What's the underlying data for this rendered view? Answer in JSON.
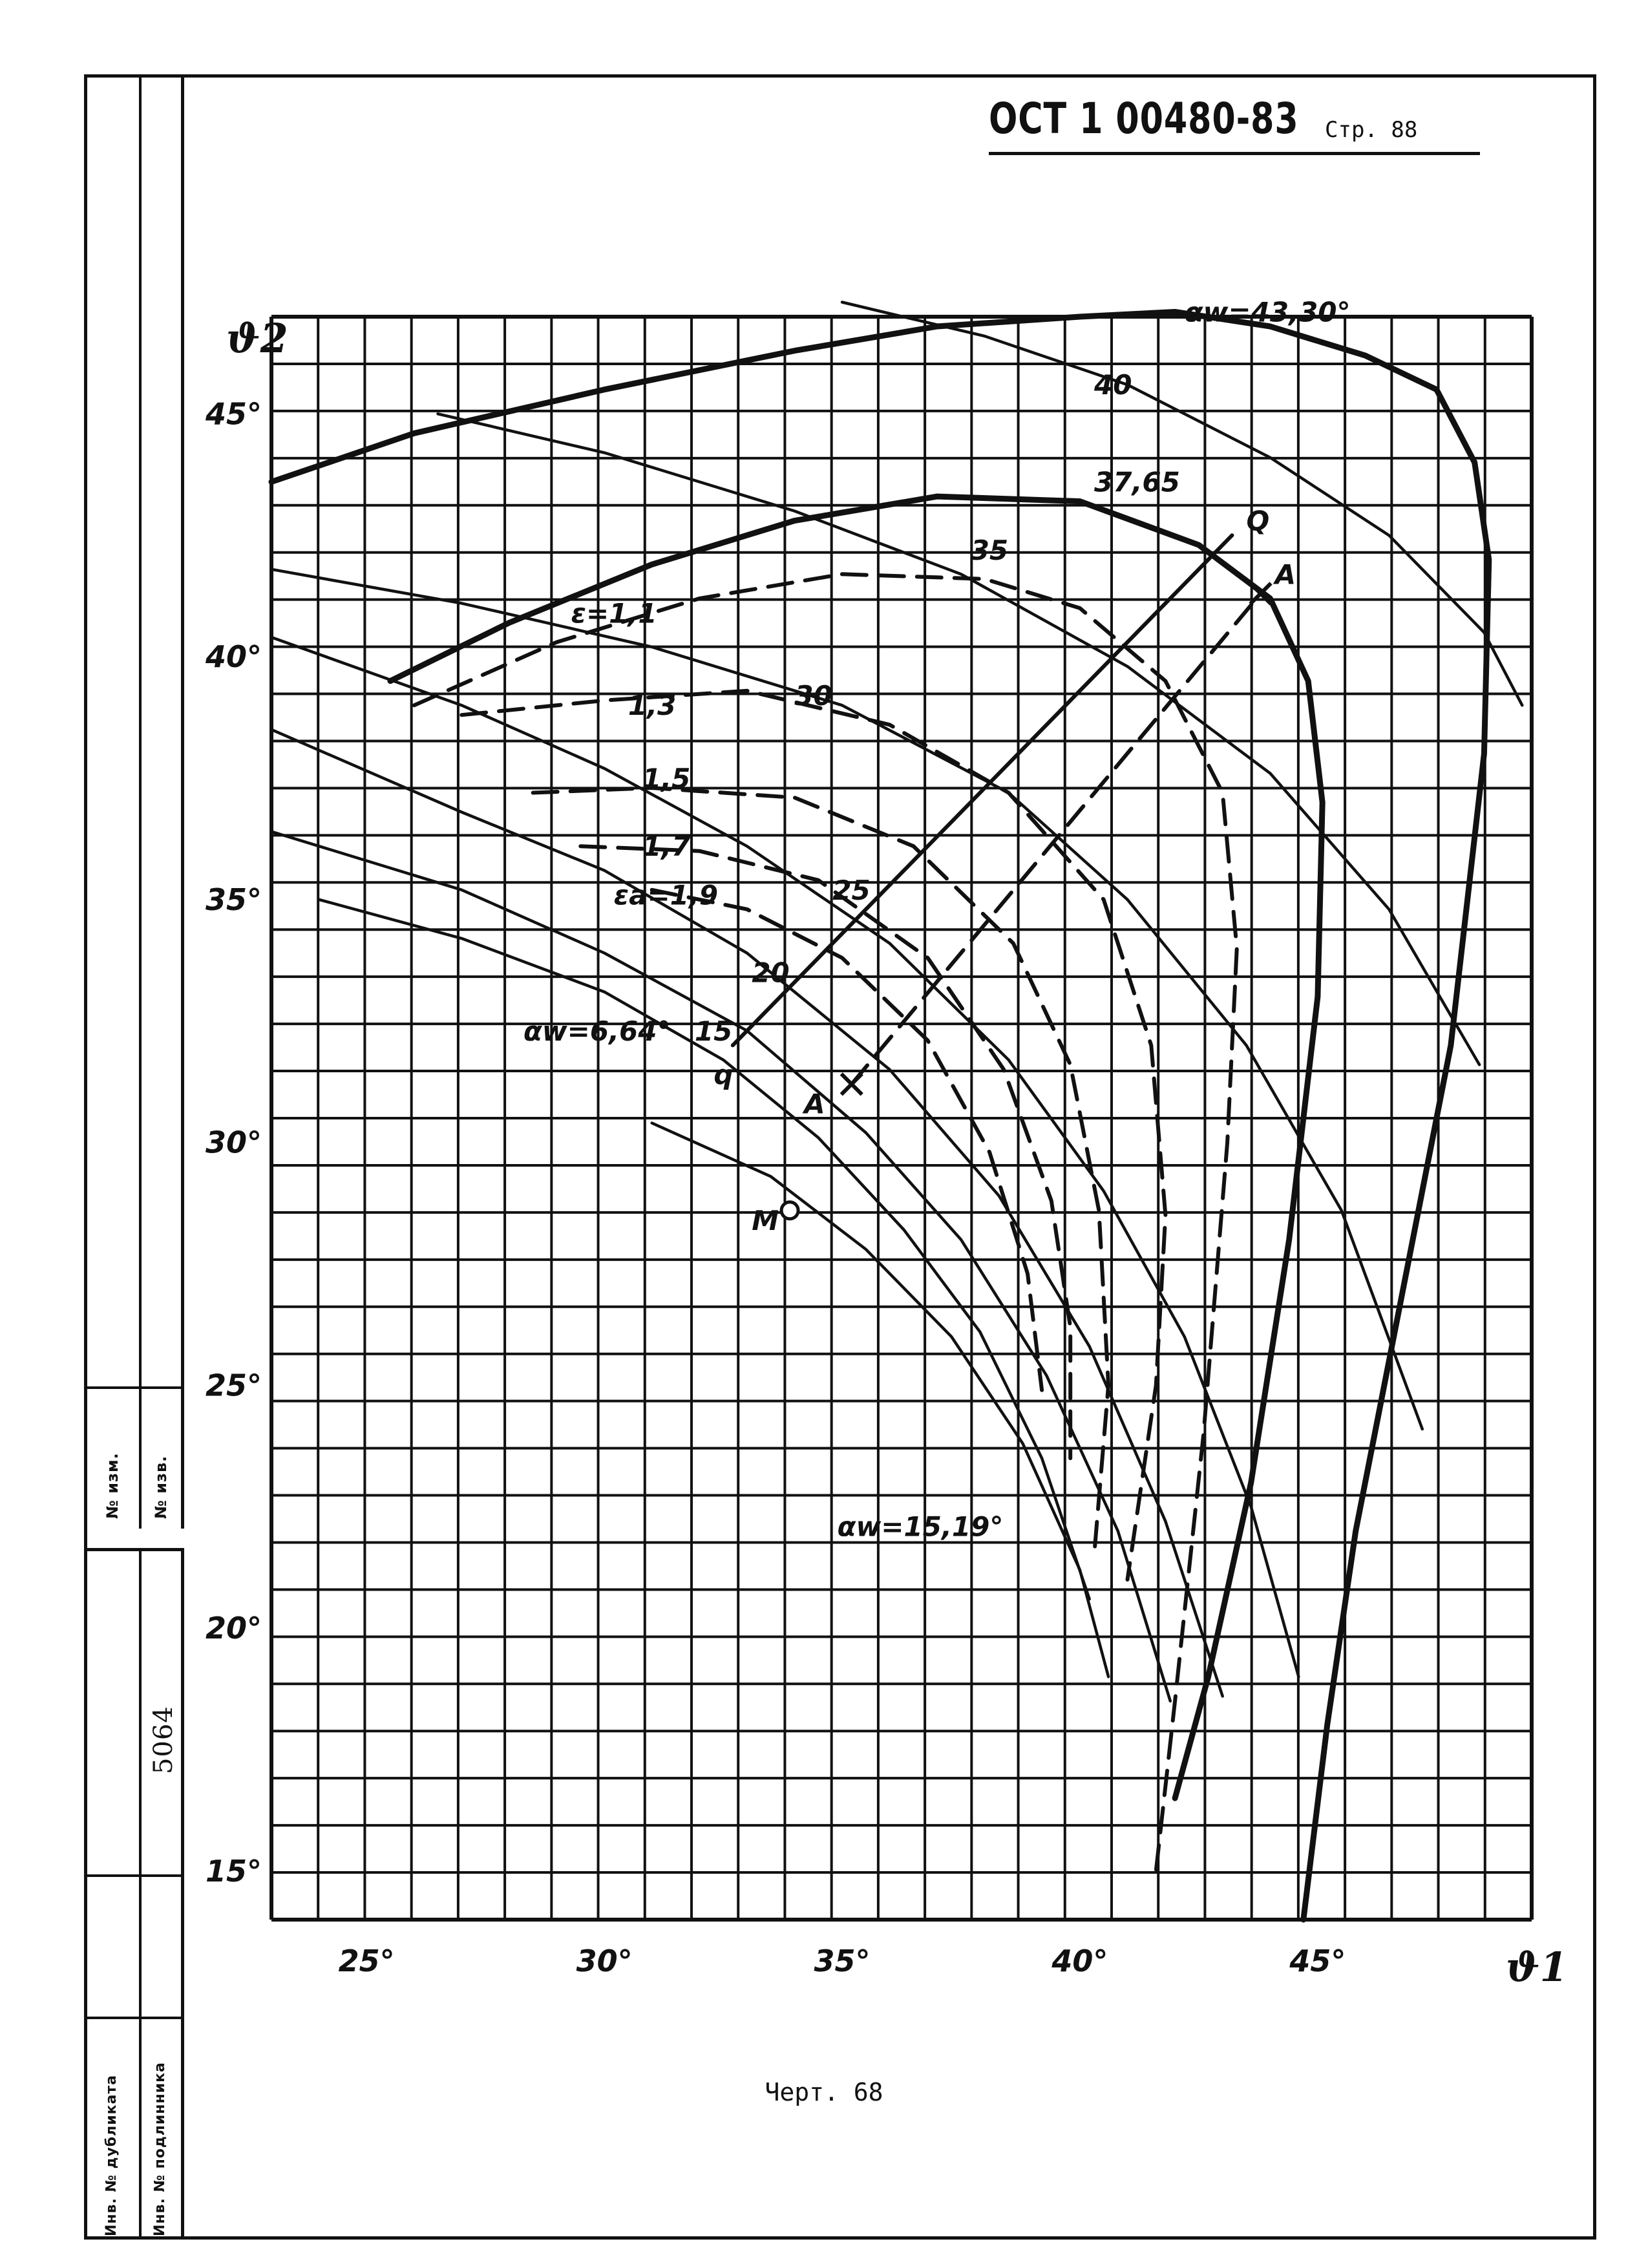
{
  "header": {
    "doc_code": "ОСТ 1 00480-83",
    "page_label": "Стр. 88"
  },
  "caption": "Черт. 68",
  "side_stamp": {
    "upper_labels": [
      "№ изм.",
      "№ изв."
    ],
    "lower_value": "5064",
    "lower_labels": [
      "Инв. № дубликата",
      "Инв. № подлинника"
    ]
  },
  "chart_data": {
    "type": "line",
    "xlabel": "ϑ1",
    "ylabel": "ϑ2",
    "xlim": [
      23,
      49.5
    ],
    "ylim": [
      14,
      47
    ],
    "grid": true,
    "x_ticks": [
      {
        "v": 25,
        "label": "25°"
      },
      {
        "v": 30,
        "label": "30°"
      },
      {
        "v": 35,
        "label": "35°"
      },
      {
        "v": 40,
        "label": "40°"
      },
      {
        "v": 45,
        "label": "45°"
      }
    ],
    "y_ticks": [
      {
        "v": 15,
        "label": "15°"
      },
      {
        "v": 20,
        "label": "20°"
      },
      {
        "v": 25,
        "label": "25°"
      },
      {
        "v": 30,
        "label": "30°"
      },
      {
        "v": 35,
        "label": "35°"
      },
      {
        "v": 40,
        "label": "40°"
      },
      {
        "v": 45,
        "label": "45°"
      }
    ],
    "series": [
      {
        "name": "αw=43,30°",
        "style": "heavy",
        "points": [
          [
            23,
            43.6
          ],
          [
            26,
            44.6
          ],
          [
            30,
            45.5
          ],
          [
            34,
            46.3
          ],
          [
            37,
            46.8
          ],
          [
            40,
            47.0
          ],
          [
            42,
            47.1
          ],
          [
            44,
            46.8
          ],
          [
            46,
            46.2
          ],
          [
            47.5,
            45.5
          ],
          [
            48.3,
            44
          ],
          [
            48.6,
            42
          ],
          [
            48.5,
            38
          ],
          [
            47.8,
            32
          ],
          [
            46.6,
            26
          ],
          [
            45.8,
            22
          ],
          [
            45.2,
            18
          ],
          [
            44.7,
            14
          ]
        ]
      },
      {
        "name": "37,65",
        "style": "heavy",
        "points": [
          [
            25.5,
            39.5
          ],
          [
            28,
            40.7
          ],
          [
            31,
            41.9
          ],
          [
            34,
            42.8
          ],
          [
            37,
            43.3
          ],
          [
            40,
            43.2
          ],
          [
            42.5,
            42.3
          ],
          [
            44,
            41.2
          ],
          [
            44.8,
            39.5
          ],
          [
            45.1,
            37
          ],
          [
            45,
            33
          ],
          [
            44.4,
            28
          ],
          [
            43.6,
            23
          ],
          [
            42.7,
            19
          ],
          [
            42,
            16.5
          ]
        ]
      },
      {
        "name": "ε=1,1",
        "style": "dashed",
        "points": [
          [
            26,
            39
          ],
          [
            29,
            40.3
          ],
          [
            32,
            41.2
          ],
          [
            35,
            41.7
          ],
          [
            38,
            41.6
          ],
          [
            40,
            41
          ],
          [
            41.8,
            39.5
          ],
          [
            43,
            37.2
          ],
          [
            43.3,
            34
          ],
          [
            43.1,
            30
          ],
          [
            42.6,
            24
          ],
          [
            42,
            18.5
          ],
          [
            41.6,
            15
          ]
        ]
      },
      {
        "name": "1,3",
        "style": "dashed",
        "points": [
          [
            27,
            38.8
          ],
          [
            30,
            39.1
          ],
          [
            33,
            39.3
          ],
          [
            36,
            38.6
          ],
          [
            38.5,
            37.2
          ],
          [
            40.5,
            35
          ],
          [
            41.5,
            32
          ],
          [
            41.8,
            28.5
          ],
          [
            41.6,
            25
          ],
          [
            41,
            21
          ]
        ]
      },
      {
        "name": "1,5",
        "style": "dashed",
        "points": [
          [
            28.5,
            37.2
          ],
          [
            31,
            37.3
          ],
          [
            34,
            37.1
          ],
          [
            36.5,
            36.1
          ],
          [
            38.6,
            34.1
          ],
          [
            39.8,
            31.6
          ],
          [
            40.4,
            28.6
          ],
          [
            40.6,
            25
          ],
          [
            40.3,
            21.5
          ]
        ]
      },
      {
        "name": "1,7",
        "style": "dashed",
        "points": [
          [
            29.5,
            36.1
          ],
          [
            32,
            36
          ],
          [
            34.5,
            35.4
          ],
          [
            36.8,
            33.8
          ],
          [
            38.4,
            31.5
          ],
          [
            39.4,
            28.8
          ],
          [
            39.8,
            26.2
          ],
          [
            39.8,
            23.5
          ]
        ]
      },
      {
        "name": "εa=1,9",
        "style": "dashed",
        "points": [
          [
            31,
            35.2
          ],
          [
            33,
            34.8
          ],
          [
            35,
            33.8
          ],
          [
            36.8,
            32.1
          ],
          [
            38.1,
            29.8
          ],
          [
            38.9,
            27.3
          ],
          [
            39.2,
            24.9
          ]
        ]
      },
      {
        "name": "40",
        "style": "thin",
        "points": [
          [
            35,
            47.3
          ],
          [
            38,
            46.6
          ],
          [
            41,
            45.6
          ],
          [
            44,
            44.1
          ],
          [
            46.5,
            42.5
          ],
          [
            48.5,
            40.5
          ],
          [
            49.3,
            39
          ]
        ]
      },
      {
        "name": "35",
        "style": "thin",
        "points": [
          [
            26.5,
            45.0
          ],
          [
            30,
            44.2
          ],
          [
            34,
            43.0
          ],
          [
            37.5,
            41.7
          ],
          [
            41,
            39.8
          ],
          [
            44,
            37.6
          ],
          [
            46.5,
            34.8
          ],
          [
            48.4,
            31.6
          ]
        ]
      },
      {
        "name": "30",
        "style": "thin",
        "points": [
          [
            23,
            41.8
          ],
          [
            27,
            41.1
          ],
          [
            31,
            40.2
          ],
          [
            35,
            39.0
          ],
          [
            38.5,
            37.2
          ],
          [
            41,
            35
          ],
          [
            43.5,
            32
          ],
          [
            45.5,
            28.6
          ],
          [
            47.2,
            24.1
          ]
        ]
      },
      {
        "name": "25",
        "style": "thin",
        "points": [
          [
            23,
            40.4
          ],
          [
            27,
            39.0
          ],
          [
            30,
            37.7
          ],
          [
            33,
            36.1
          ],
          [
            36,
            34.1
          ],
          [
            38.5,
            31.7
          ],
          [
            40.5,
            29
          ],
          [
            42.2,
            26
          ],
          [
            43.6,
            22.5
          ],
          [
            44.6,
            19
          ]
        ]
      },
      {
        "name": "20",
        "style": "thin",
        "points": [
          [
            23,
            38.5
          ],
          [
            27,
            36.8
          ],
          [
            30,
            35.6
          ],
          [
            33,
            33.9
          ],
          [
            36,
            31.5
          ],
          [
            38.3,
            28.9
          ],
          [
            40.2,
            25.8
          ],
          [
            41.8,
            22.2
          ],
          [
            43,
            18.6
          ]
        ]
      },
      {
        "name": "15",
        "style": "thin",
        "points": [
          [
            23,
            36.4
          ],
          [
            27,
            35.2
          ],
          [
            30,
            33.9
          ],
          [
            33,
            32.3
          ],
          [
            35.5,
            30.2
          ],
          [
            37.5,
            28
          ],
          [
            39.3,
            25.2
          ],
          [
            40.8,
            22
          ],
          [
            41.9,
            18.5
          ]
        ]
      },
      {
        "name": "αw=6,64°",
        "style": "thin",
        "points": [
          [
            24,
            35
          ],
          [
            27,
            34.2
          ],
          [
            30,
            33.1
          ],
          [
            32.5,
            31.7
          ],
          [
            34.5,
            30.1
          ],
          [
            36.3,
            28.2
          ],
          [
            37.9,
            26.1
          ],
          [
            39.2,
            23.5
          ],
          [
            40.2,
            20.6
          ]
        ]
      },
      {
        "name": "αw=15,19°",
        "style": "thin",
        "points": [
          [
            31,
            30.4
          ],
          [
            33.5,
            29.3
          ],
          [
            35.5,
            27.8
          ],
          [
            37.3,
            26
          ],
          [
            38.8,
            23.8
          ],
          [
            40,
            21.2
          ],
          [
            40.6,
            19
          ]
        ]
      },
      {
        "name": "Qq",
        "style": "medium",
        "points": [
          [
            32.7,
            32.0
          ],
          [
            43.2,
            42.5
          ]
        ]
      },
      {
        "name": "AA",
        "style": "dashed",
        "points": [
          [
            35.2,
            31.2
          ],
          [
            43.8,
            41.3
          ]
        ]
      }
    ],
    "annotations": [
      {
        "text": "αw=43,30°",
        "x": 42.2,
        "y": 46.9
      },
      {
        "text": "40",
        "x": 40.3,
        "y": 45.4
      },
      {
        "text": "37,65",
        "x": 40.3,
        "y": 43.4
      },
      {
        "text": "35",
        "x": 37.7,
        "y": 42.0
      },
      {
        "text": "ε=1,1",
        "x": 29.3,
        "y": 40.7
      },
      {
        "text": "1,3",
        "x": 30.5,
        "y": 38.8
      },
      {
        "text": "30",
        "x": 34,
        "y": 39.0
      },
      {
        "text": "1,5",
        "x": 30.8,
        "y": 37.3
      },
      {
        "text": "1,7",
        "x": 30.8,
        "y": 35.9
      },
      {
        "text": "25",
        "x": 34.8,
        "y": 35.0
      },
      {
        "text": "εa=1,9",
        "x": 30.2,
        "y": 34.9
      },
      {
        "text": "20",
        "x": 33.1,
        "y": 33.3
      },
      {
        "text": "15",
        "x": 31.9,
        "y": 32.1
      },
      {
        "text": "αw=6,64°",
        "x": 28.3,
        "y": 32.1
      },
      {
        "text": "Q",
        "x": 43.5,
        "y": 42.6
      },
      {
        "text": "A",
        "x": 44.1,
        "y": 41.5
      },
      {
        "text": "q",
        "x": 32.3,
        "y": 31.2
      },
      {
        "text": "A",
        "x": 34.2,
        "y": 30.6
      },
      {
        "text": "M",
        "x": 33.1,
        "y": 28.2
      },
      {
        "text": "αw=15,19°",
        "x": 34.9,
        "y": 21.9
      }
    ],
    "markers": [
      {
        "name": "M",
        "x": 33.9,
        "y": 28.6,
        "shape": "circle"
      },
      {
        "name": "A",
        "x": 35.2,
        "y": 31.2,
        "shape": "cross"
      },
      {
        "name": "A",
        "x": 43.8,
        "y": 41.3,
        "shape": "cross"
      }
    ]
  }
}
